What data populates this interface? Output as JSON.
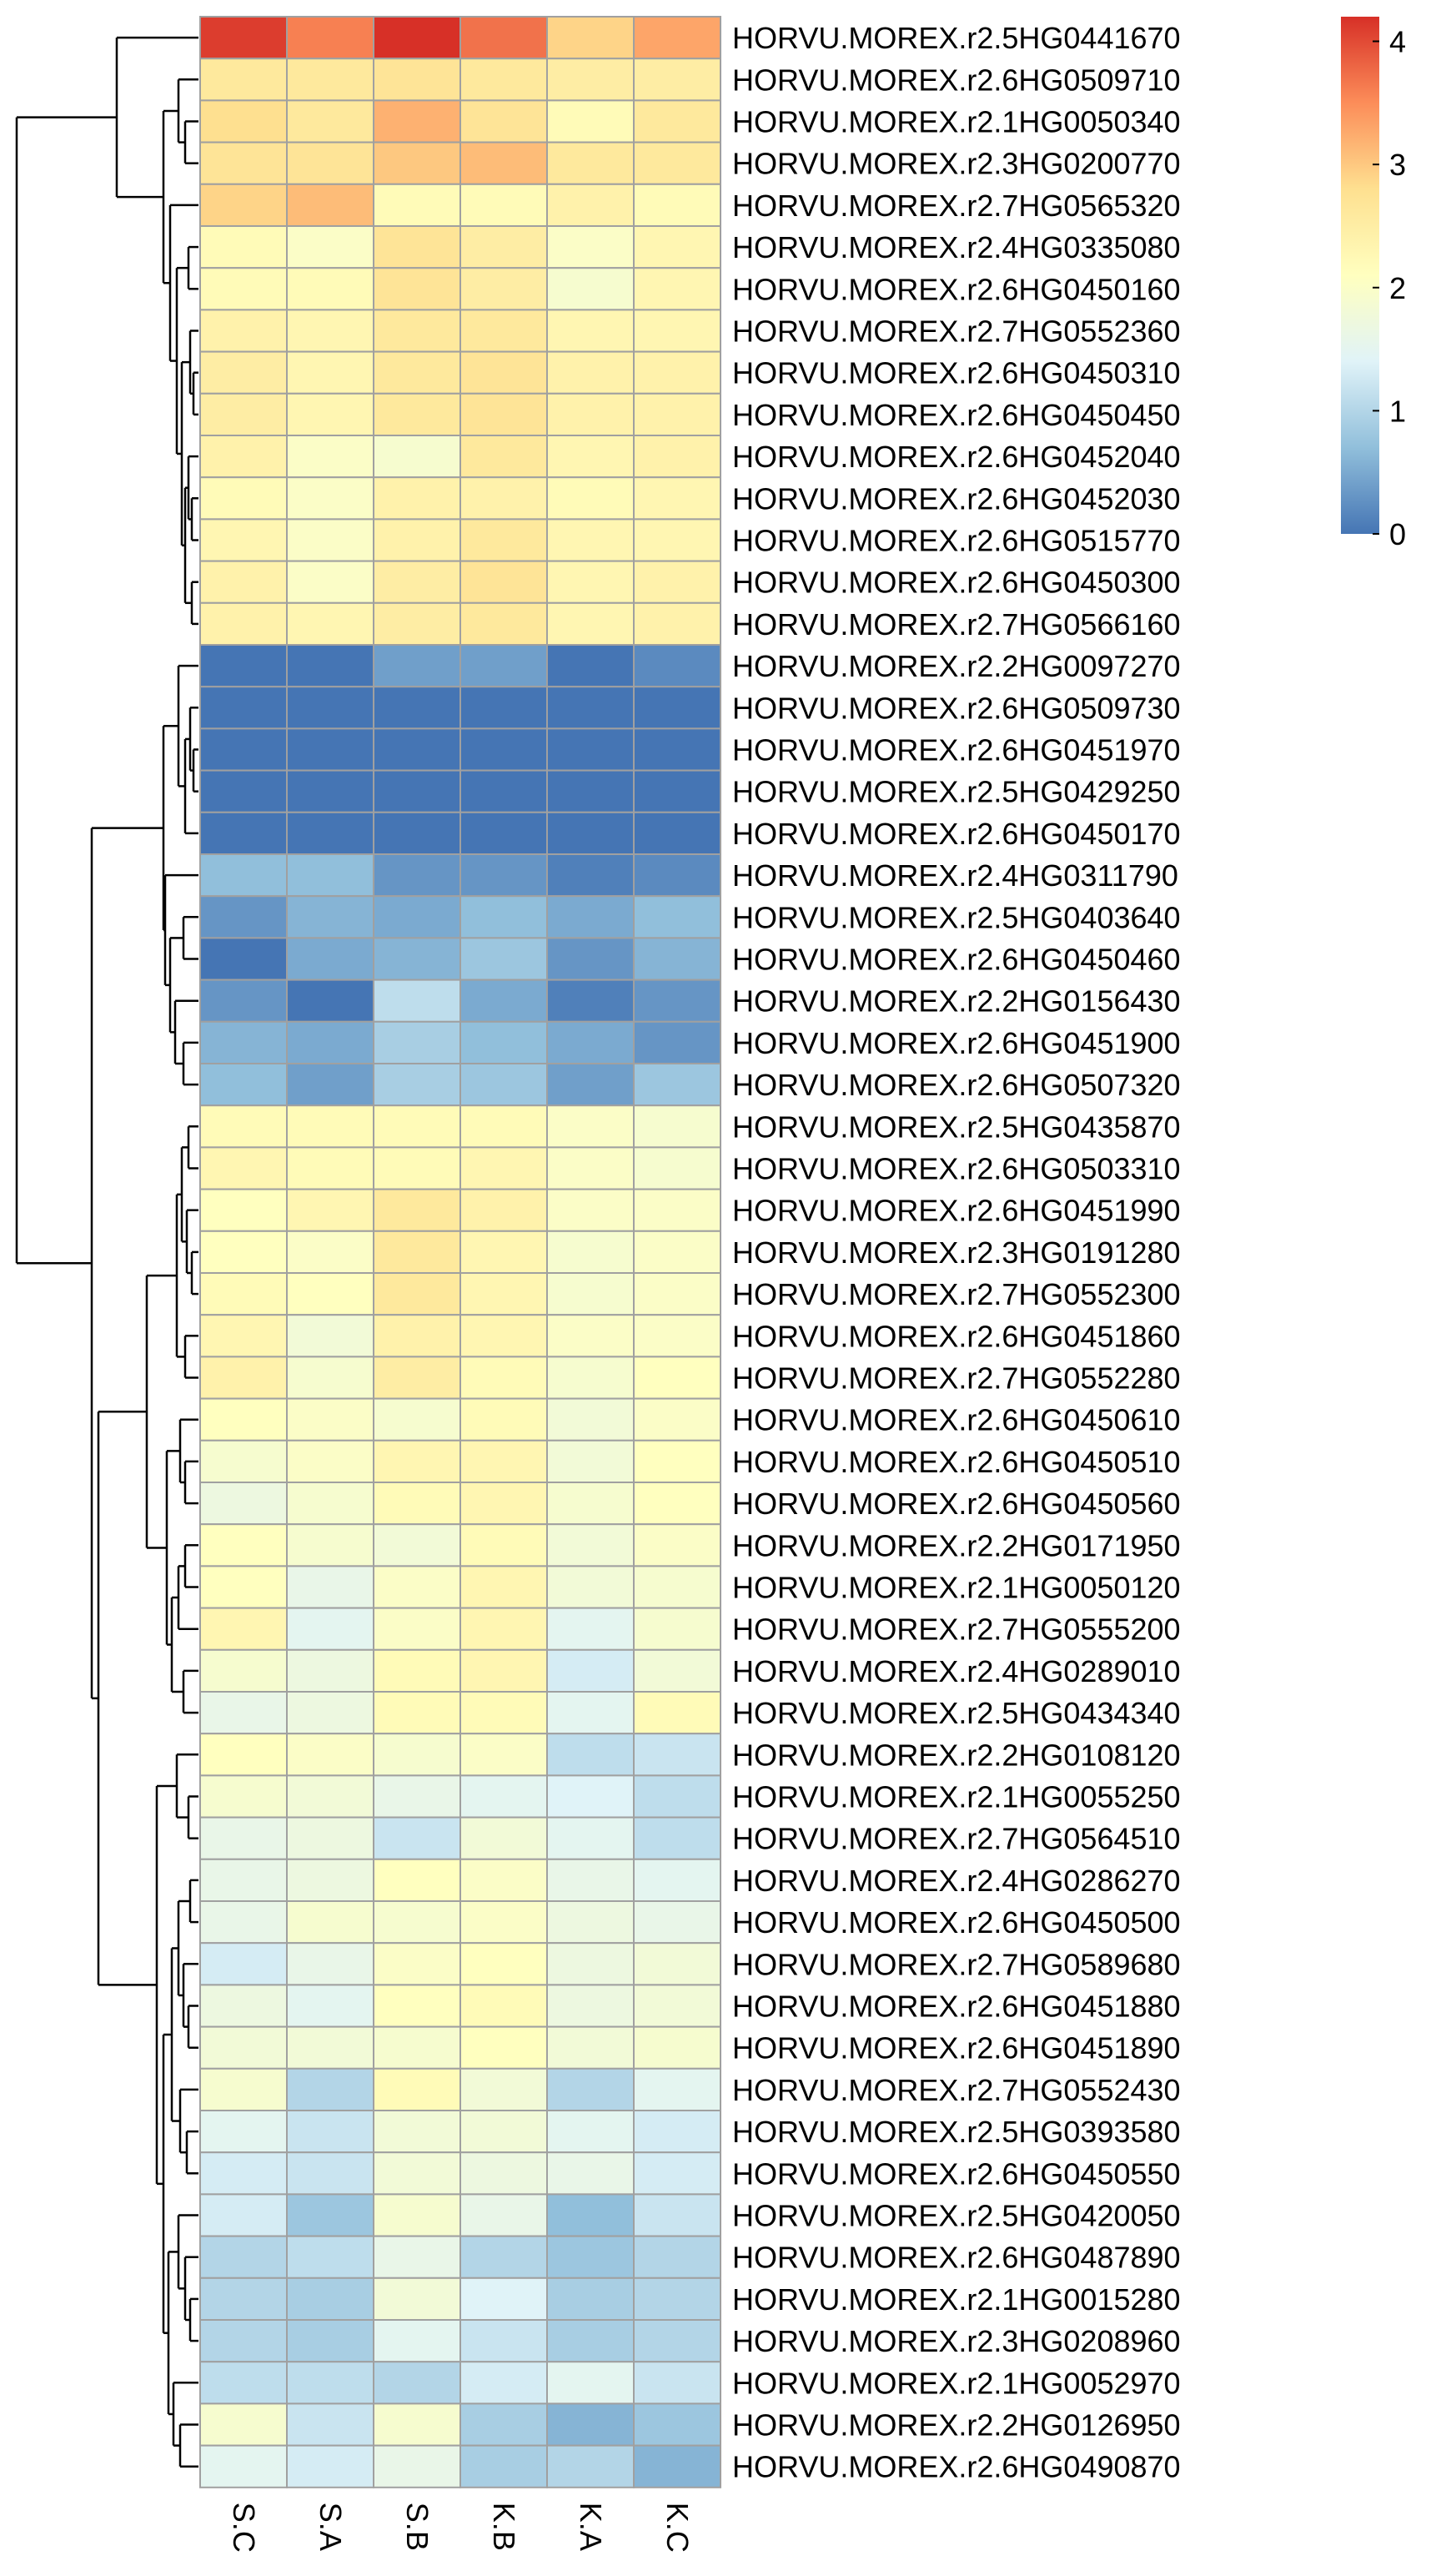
{
  "chart_data": {
    "type": "heatmap",
    "title": "",
    "columns": [
      "S.C",
      "S.A",
      "S.B",
      "K.B",
      "K.A",
      "K.C"
    ],
    "rows": [
      "HORVU.MOREX.r2.5HG0441670",
      "HORVU.MOREX.r2.6HG0509710",
      "HORVU.MOREX.r2.1HG0050340",
      "HORVU.MOREX.r2.3HG0200770",
      "HORVU.MOREX.r2.7HG0565320",
      "HORVU.MOREX.r2.4HG0335080",
      "HORVU.MOREX.r2.6HG0450160",
      "HORVU.MOREX.r2.7HG0552360",
      "HORVU.MOREX.r2.6HG0450310",
      "HORVU.MOREX.r2.6HG0450450",
      "HORVU.MOREX.r2.6HG0452040",
      "HORVU.MOREX.r2.6HG0452030",
      "HORVU.MOREX.r2.6HG0515770",
      "HORVU.MOREX.r2.6HG0450300",
      "HORVU.MOREX.r2.7HG0566160",
      "HORVU.MOREX.r2.2HG0097270",
      "HORVU.MOREX.r2.6HG0509730",
      "HORVU.MOREX.r2.6HG0451970",
      "HORVU.MOREX.r2.5HG0429250",
      "HORVU.MOREX.r2.6HG0450170",
      "HORVU.MOREX.r2.4HG0311790",
      "HORVU.MOREX.r2.5HG0403640",
      "HORVU.MOREX.r2.6HG0450460",
      "HORVU.MOREX.r2.2HG0156430",
      "HORVU.MOREX.r2.6HG0451900",
      "HORVU.MOREX.r2.6HG0507320",
      "HORVU.MOREX.r2.5HG0435870",
      "HORVU.MOREX.r2.6HG0503310",
      "HORVU.MOREX.r2.6HG0451990",
      "HORVU.MOREX.r2.3HG0191280",
      "HORVU.MOREX.r2.7HG0552300",
      "HORVU.MOREX.r2.6HG0451860",
      "HORVU.MOREX.r2.7HG0552280",
      "HORVU.MOREX.r2.6HG0450610",
      "HORVU.MOREX.r2.6HG0450510",
      "HORVU.MOREX.r2.6HG0450560",
      "HORVU.MOREX.r2.2HG0171950",
      "HORVU.MOREX.r2.1HG0050120",
      "HORVU.MOREX.r2.7HG0555200",
      "HORVU.MOREX.r2.4HG0289010",
      "HORVU.MOREX.r2.5HG0434340",
      "HORVU.MOREX.r2.2HG0108120",
      "HORVU.MOREX.r2.1HG0055250",
      "HORVU.MOREX.r2.7HG0564510",
      "HORVU.MOREX.r2.4HG0286270",
      "HORVU.MOREX.r2.6HG0450500",
      "HORVU.MOREX.r2.7HG0589680",
      "HORVU.MOREX.r2.6HG0451880",
      "HORVU.MOREX.r2.6HG0451890",
      "HORVU.MOREX.r2.7HG0552430",
      "HORVU.MOREX.r2.5HG0393580",
      "HORVU.MOREX.r2.6HG0450550",
      "HORVU.MOREX.r2.5HG0420050",
      "HORVU.MOREX.r2.6HG0487890",
      "HORVU.MOREX.r2.1HG0015280",
      "HORVU.MOREX.r2.3HG0208960",
      "HORVU.MOREX.r2.1HG0052970",
      "HORVU.MOREX.r2.2HG0126950",
      "HORVU.MOREX.r2.6HG0490870"
    ],
    "values": [
      [
        4.1,
        3.6,
        4.2,
        3.7,
        2.9,
        3.3
      ],
      [
        2.6,
        2.6,
        2.7,
        2.6,
        2.5,
        2.5
      ],
      [
        2.8,
        2.6,
        3.2,
        2.7,
        2.2,
        2.6
      ],
      [
        2.7,
        2.7,
        3.0,
        3.1,
        2.6,
        2.6
      ],
      [
        2.9,
        3.1,
        2.2,
        2.2,
        2.4,
        2.2
      ],
      [
        2.2,
        2.0,
        2.7,
        2.5,
        2.0,
        2.3
      ],
      [
        2.2,
        2.2,
        2.7,
        2.5,
        1.9,
        2.3
      ],
      [
        2.4,
        2.3,
        2.6,
        2.6,
        2.3,
        2.3
      ],
      [
        2.5,
        2.3,
        2.6,
        2.7,
        2.4,
        2.4
      ],
      [
        2.5,
        2.3,
        2.6,
        2.7,
        2.4,
        2.4
      ],
      [
        2.4,
        2.0,
        1.9,
        2.6,
        2.3,
        2.4
      ],
      [
        2.2,
        2.0,
        2.4,
        2.4,
        2.2,
        2.3
      ],
      [
        2.3,
        2.0,
        2.4,
        2.6,
        2.3,
        2.3
      ],
      [
        2.4,
        2.0,
        2.5,
        2.7,
        2.3,
        2.4
      ],
      [
        2.4,
        2.3,
        2.5,
        2.6,
        2.3,
        2.4
      ],
      [
        0.0,
        0.0,
        0.4,
        0.4,
        0.0,
        0.2
      ],
      [
        0.0,
        0.0,
        0.0,
        0.0,
        0.0,
        0.0
      ],
      [
        0.0,
        0.0,
        0.0,
        0.0,
        0.0,
        0.0
      ],
      [
        0.0,
        0.0,
        0.0,
        0.0,
        0.0,
        0.0
      ],
      [
        0.0,
        0.0,
        0.0,
        0.0,
        0.0,
        0.0
      ],
      [
        0.7,
        0.7,
        0.3,
        0.3,
        0.1,
        0.2
      ],
      [
        0.3,
        0.6,
        0.5,
        0.7,
        0.5,
        0.7
      ],
      [
        0.0,
        0.5,
        0.6,
        0.8,
        0.3,
        0.6
      ],
      [
        0.3,
        0.0,
        1.1,
        0.5,
        0.1,
        0.3
      ],
      [
        0.6,
        0.5,
        0.9,
        0.7,
        0.5,
        0.3
      ],
      [
        0.7,
        0.4,
        0.9,
        0.8,
        0.4,
        0.8
      ],
      [
        2.2,
        2.2,
        2.2,
        2.2,
        2.0,
        1.9
      ],
      [
        2.3,
        2.2,
        2.2,
        2.3,
        2.0,
        1.9
      ],
      [
        2.1,
        2.3,
        2.6,
        2.4,
        2.0,
        2.0
      ],
      [
        2.1,
        2.0,
        2.6,
        2.3,
        1.9,
        2.0
      ],
      [
        2.2,
        2.1,
        2.6,
        2.3,
        1.9,
        2.0
      ],
      [
        2.3,
        1.8,
        2.4,
        2.3,
        2.0,
        2.0
      ],
      [
        2.4,
        1.9,
        2.5,
        2.2,
        1.9,
        2.1
      ],
      [
        2.1,
        2.0,
        1.9,
        2.2,
        1.8,
        2.0
      ],
      [
        1.9,
        2.0,
        2.3,
        2.3,
        1.8,
        2.1
      ],
      [
        1.7,
        1.9,
        2.2,
        2.3,
        1.9,
        2.1
      ],
      [
        2.1,
        1.9,
        1.8,
        2.2,
        1.8,
        2.0
      ],
      [
        2.1,
        1.6,
        2.0,
        2.3,
        1.8,
        1.9
      ],
      [
        2.3,
        1.5,
        2.0,
        2.3,
        1.5,
        1.9
      ],
      [
        1.9,
        1.7,
        2.2,
        2.3,
        1.3,
        1.8
      ],
      [
        1.6,
        1.7,
        2.2,
        2.2,
        1.5,
        2.2
      ],
      [
        2.1,
        2.0,
        1.9,
        2.0,
        1.1,
        1.2
      ],
      [
        1.9,
        1.8,
        1.6,
        1.5,
        1.4,
        1.1
      ],
      [
        1.6,
        1.7,
        1.2,
        1.8,
        1.5,
        1.1
      ],
      [
        1.6,
        1.7,
        2.1,
        2.0,
        1.6,
        1.5
      ],
      [
        1.6,
        1.9,
        1.9,
        2.0,
        1.7,
        1.6
      ],
      [
        1.3,
        1.6,
        2.0,
        2.1,
        1.7,
        1.8
      ],
      [
        1.7,
        1.5,
        2.1,
        2.2,
        1.7,
        1.8
      ],
      [
        1.8,
        1.8,
        1.9,
        2.1,
        1.8,
        1.9
      ],
      [
        1.9,
        1.0,
        2.2,
        1.8,
        1.0,
        1.5
      ],
      [
        1.5,
        1.2,
        1.8,
        1.8,
        1.5,
        1.3
      ],
      [
        1.3,
        1.2,
        1.8,
        1.7,
        1.6,
        1.3
      ],
      [
        1.3,
        0.8,
        1.9,
        1.6,
        0.7,
        1.2
      ],
      [
        1.0,
        1.1,
        1.6,
        1.0,
        0.8,
        1.0
      ],
      [
        1.0,
        0.9,
        1.8,
        1.4,
        0.9,
        1.0
      ],
      [
        1.0,
        0.9,
        1.5,
        1.2,
        0.9,
        1.0
      ],
      [
        1.1,
        1.1,
        1.0,
        1.3,
        1.5,
        1.2
      ],
      [
        1.9,
        1.2,
        1.9,
        0.9,
        0.6,
        0.8
      ],
      [
        1.5,
        1.3,
        1.6,
        0.9,
        1.0,
        0.6
      ]
    ],
    "color_scale": {
      "min": 0,
      "max": 4.2,
      "stops": [
        "#4575B4",
        "#91BFDB",
        "#E0F3F8",
        "#FFFFBF",
        "#FEE090",
        "#FC8D59",
        "#D73027"
      ]
    },
    "legend": {
      "ticks": [
        "0",
        "1",
        "2",
        "3",
        "4"
      ],
      "tick_values": [
        0,
        1,
        2,
        3,
        4
      ],
      "placement": "top-right"
    },
    "row_dendrogram": true,
    "column_dendrogram": false
  }
}
